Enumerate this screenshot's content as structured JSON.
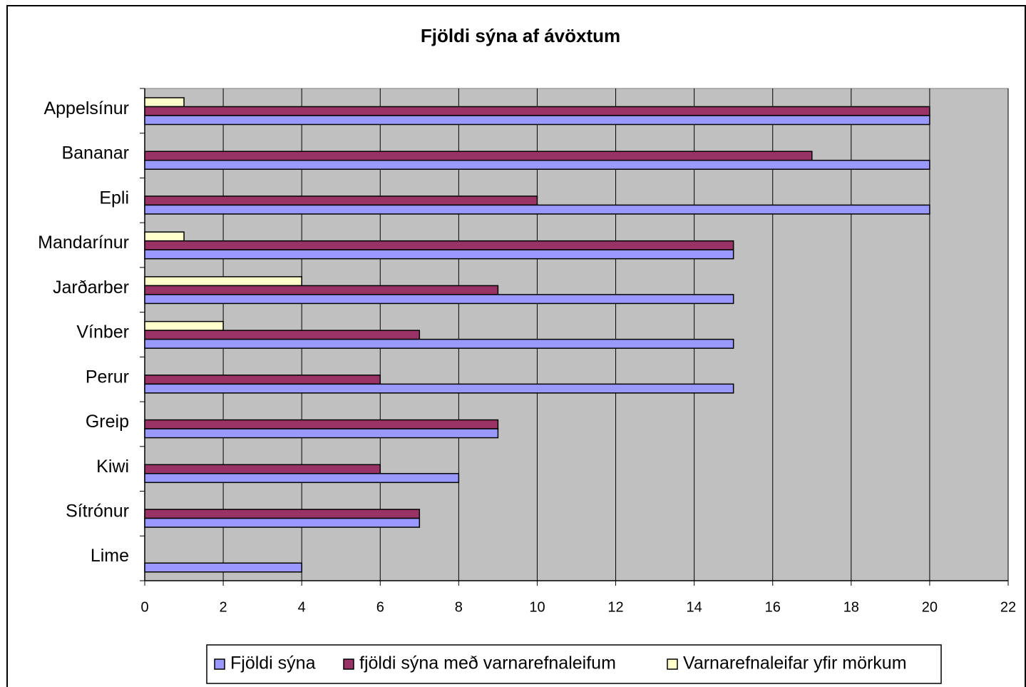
{
  "chart_data": {
    "type": "bar",
    "orientation": "horizontal",
    "title": "Fjöldi sýna af ávöxtum",
    "categories": [
      "Appelsínur",
      "Bananar",
      "Epli",
      "Mandarínur",
      "Jarðarber",
      "Vínber",
      "Perur",
      "Greip",
      "Kiwi",
      "Sítrónur",
      "Lime"
    ],
    "series": [
      {
        "name": "Fjöldi sýna",
        "color": "#9999ff",
        "values": [
          20,
          20,
          20,
          15,
          15,
          15,
          15,
          9,
          8,
          7,
          4
        ]
      },
      {
        "name": "fjöldi sýna með varnarefnaleifum",
        "color": "#993366",
        "values": [
          20,
          17,
          10,
          15,
          9,
          7,
          6,
          9,
          6,
          7,
          0
        ]
      },
      {
        "name": "Varnarefnaleifar yfir mörkum",
        "color": "#ffffcc",
        "values": [
          1,
          0,
          0,
          1,
          4,
          2,
          0,
          0,
          0,
          0,
          0
        ]
      }
    ],
    "xlim": [
      0,
      22
    ],
    "xticks": [
      0,
      2,
      4,
      6,
      8,
      10,
      12,
      14,
      16,
      18,
      20,
      22
    ],
    "grid": true,
    "legend": "bottom",
    "background": "#c0c0c0"
  }
}
